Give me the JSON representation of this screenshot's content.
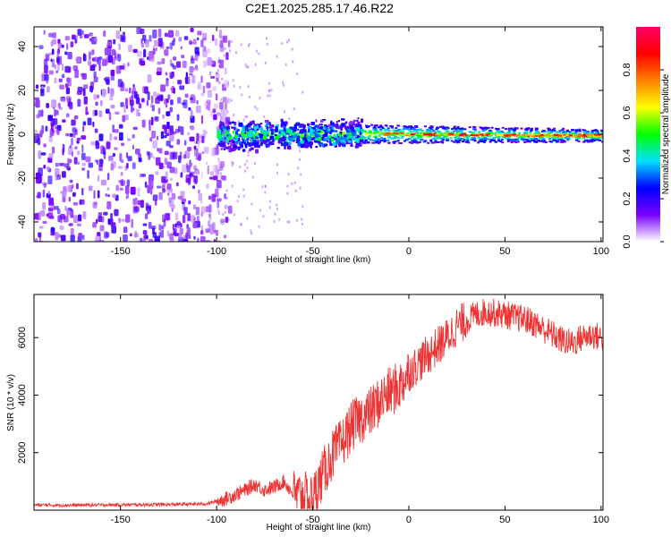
{
  "title": "C2E1.2025.285.17.46.R22",
  "chart_data": [
    {
      "type": "heatmap",
      "title": "",
      "xlabel": "Height of straight line (km)",
      "ylabel": "Frequency (Hz)",
      "xlim": [
        -195,
        101
      ],
      "ylim": [
        -49,
        49
      ],
      "xticks": [
        -150,
        -100,
        -50,
        0,
        50,
        100
      ],
      "yticks": [
        -40,
        -20,
        0,
        20,
        40
      ],
      "colorbar": {
        "label": "Normalized spectral amplitude",
        "range": [
          0.0,
          1.0
        ],
        "ticks": [
          "0.0",
          "0.2",
          "0.4",
          "0.6",
          "0.8"
        ],
        "tick_values": [
          0.0,
          0.2,
          0.4,
          0.6,
          0.8
        ],
        "colors": [
          "#ffffff",
          "#7a00ff",
          "#0000ff",
          "#00e0ff",
          "#00ff00",
          "#ffff00",
          "#ff8000",
          "#ff0000",
          "#ff0066"
        ]
      },
      "regions": [
        {
          "name": "noise",
          "x_from": -195,
          "x_to": -100,
          "freq_spread": 49,
          "amplitude": 0.15
        },
        {
          "name": "transition",
          "x_from": -100,
          "x_to": -25,
          "center_freq": 0.5,
          "band_halfwidth": 3.5,
          "peak_amplitude": 0.45
        },
        {
          "name": "signal",
          "x_from": -25,
          "x_to": 101,
          "center_freq": 0.5,
          "band_halfwidth": 2,
          "peak_amplitude": 0.95
        }
      ]
    },
    {
      "type": "line",
      "title": "",
      "xlabel": "Height of straight line (km)",
      "ylabel": "SNR (10 * v/v)",
      "xlim": [
        -195,
        101
      ],
      "ylim": [
        0,
        7500
      ],
      "xticks": [
        -150,
        -100,
        -50,
        0,
        50,
        100
      ],
      "yticks": [
        2000,
        4000,
        6000
      ],
      "color": "#ee3333",
      "series": [
        {
          "name": "SNR",
          "x": [
            -195,
            -180,
            -160,
            -140,
            -120,
            -105,
            -95,
            -85,
            -80,
            -75,
            -70,
            -65,
            -60,
            -55,
            -50,
            -45,
            -40,
            -35,
            -30,
            -25,
            -20,
            -15,
            -10,
            -5,
            0,
            5,
            10,
            15,
            20,
            25,
            30,
            35,
            40,
            45,
            50,
            55,
            60,
            65,
            70,
            75,
            80,
            85,
            90,
            95,
            100
          ],
          "y": [
            180,
            170,
            180,
            190,
            200,
            220,
            400,
            700,
            900,
            700,
            800,
            1000,
            550,
            450,
            420,
            1200,
            1900,
            2300,
            2900,
            3200,
            3400,
            3800,
            4100,
            4300,
            4800,
            5100,
            5400,
            5700,
            6000,
            6400,
            6600,
            6800,
            6900,
            6850,
            6800,
            6700,
            6650,
            6500,
            6300,
            6100,
            5900,
            5800,
            6000,
            6100,
            6000
          ]
        }
      ]
    }
  ]
}
